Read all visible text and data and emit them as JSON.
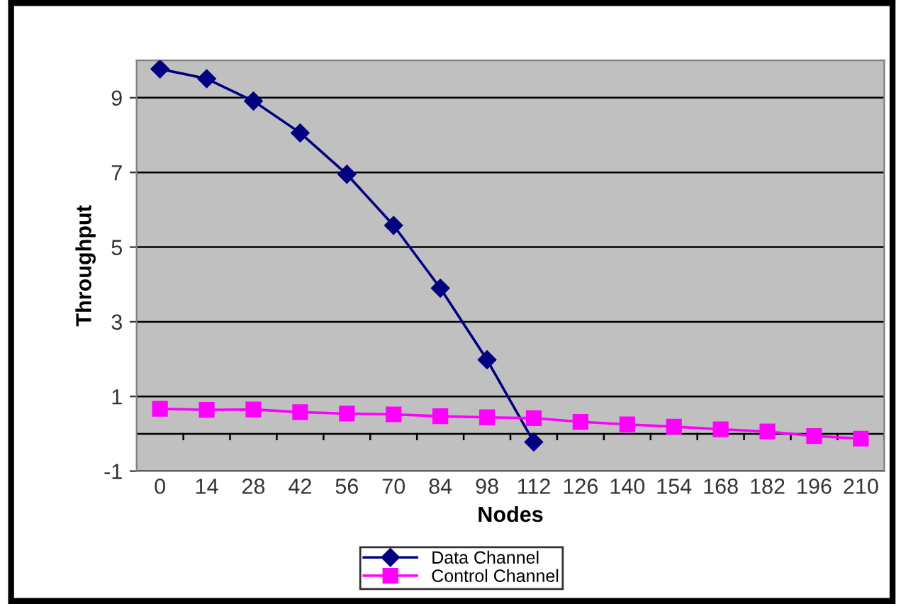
{
  "chart_data": {
    "type": "line",
    "xlabel": "Nodes",
    "ylabel": "Throughput",
    "categories": [
      "0",
      "14",
      "28",
      "42",
      "56",
      "70",
      "84",
      "98",
      "112",
      "126",
      "140",
      "154",
      "168",
      "182",
      "196",
      "210"
    ],
    "series": [
      {
        "name": "Data Channel",
        "color": "#000080",
        "marker": "diamond",
        "values": [
          9.77,
          9.51,
          8.91,
          8.06,
          6.95,
          5.58,
          3.9,
          1.98,
          -0.22,
          null,
          null,
          null,
          null,
          null,
          null,
          null
        ]
      },
      {
        "name": "Control Channel",
        "color": "#ff00ff",
        "marker": "square",
        "values": [
          0.67,
          0.64,
          0.65,
          0.58,
          0.54,
          0.52,
          0.47,
          0.44,
          0.42,
          0.32,
          0.25,
          0.19,
          0.12,
          0.06,
          -0.06,
          -0.13
        ]
      }
    ],
    "ylim": [
      -1,
      10
    ],
    "yticks": [
      -1,
      1,
      3,
      5,
      7,
      9
    ],
    "grid": "y",
    "legend": "bottom",
    "ref_lines": [
      {
        "axis": "y",
        "value": 0,
        "color": "#000000"
      }
    ]
  }
}
